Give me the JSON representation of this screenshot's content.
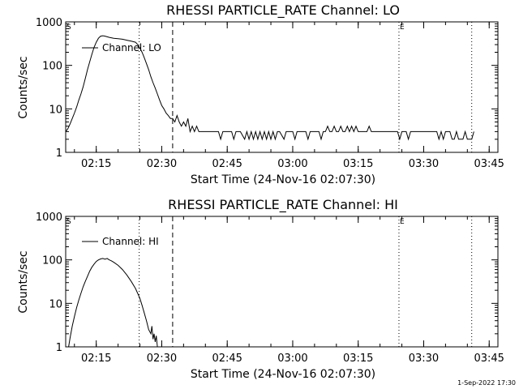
{
  "footer": {
    "timestamp": "1-Sep-2022 17:30"
  },
  "chart_data": [
    {
      "type": "line",
      "title": "RHESSI PARTICLE_RATE Channel: LO",
      "xlabel": "Start Time (24-Nov-16 02:07:30)",
      "ylabel": "Counts/sec",
      "yscale": "log",
      "ylim": [
        1,
        1000
      ],
      "xlim": [
        "02:08:00",
        "03:47:00"
      ],
      "x_ticks": [
        "02:15",
        "02:30",
        "02:45",
        "03:00",
        "03:15",
        "03:30",
        "03:45"
      ],
      "y_ticks": [
        "1",
        "10",
        "100",
        "1000"
      ],
      "grid": false,
      "legend": {
        "label": "Channel: LO",
        "position": "top-left"
      },
      "markers": [
        {
          "label": "S",
          "time": "02:08:00",
          "style": "dotted"
        },
        {
          "label": "",
          "time": "02:24:50",
          "style": "dotted"
        },
        {
          "label": "",
          "time": "02:32:30",
          "style": "dashed"
        },
        {
          "label": "E",
          "time": "03:24:20",
          "style": "dotted"
        },
        {
          "label": "",
          "time": "03:41:00",
          "style": "dotted"
        }
      ],
      "series": [
        {
          "name": "Channel: LO",
          "points": [
            [
              "02:08:00",
              3
            ],
            [
              "02:08:30",
              3.5
            ],
            [
              "02:09:00",
              4.5
            ],
            [
              "02:09:30",
              6
            ],
            [
              "02:10:00",
              8
            ],
            [
              "02:10:30",
              11
            ],
            [
              "02:11:00",
              16
            ],
            [
              "02:11:30",
              22
            ],
            [
              "02:12:00",
              32
            ],
            [
              "02:12:30",
              50
            ],
            [
              "02:13:00",
              80
            ],
            [
              "02:13:30",
              120
            ],
            [
              "02:14:00",
              180
            ],
            [
              "02:14:30",
              260
            ],
            [
              "02:15:00",
              340
            ],
            [
              "02:15:30",
              420
            ],
            [
              "02:16:00",
              470
            ],
            [
              "02:16:30",
              480
            ],
            [
              "02:17:00",
              470
            ],
            [
              "02:18:00",
              440
            ],
            [
              "02:19:00",
              420
            ],
            [
              "02:20:00",
              410
            ],
            [
              "02:21:00",
              400
            ],
            [
              "02:22:00",
              380
            ],
            [
              "02:23:00",
              360
            ],
            [
              "02:24:00",
              340
            ],
            [
              "02:24:30",
              300
            ],
            [
              "02:25:00",
              250
            ],
            [
              "02:25:30",
              200
            ],
            [
              "02:26:00",
              150
            ],
            [
              "02:26:30",
              110
            ],
            [
              "02:27:00",
              80
            ],
            [
              "02:27:30",
              55
            ],
            [
              "02:28:00",
              40
            ],
            [
              "02:28:30",
              30
            ],
            [
              "02:29:00",
              22
            ],
            [
              "02:29:30",
              16
            ],
            [
              "02:30:00",
              12
            ],
            [
              "02:30:30",
              10
            ],
            [
              "02:31:00",
              8
            ],
            [
              "02:31:30",
              7
            ],
            [
              "02:32:00",
              6
            ],
            [
              "02:32:30",
              6
            ],
            [
              "02:33:00",
              5
            ],
            [
              "02:33:30",
              7
            ],
            [
              "02:34:00",
              5
            ],
            [
              "02:34:30",
              4
            ],
            [
              "02:35:00",
              5
            ],
            [
              "02:35:30",
              4
            ],
            [
              "02:36:00",
              6
            ],
            [
              "02:36:30",
              3
            ],
            [
              "02:37:00",
              4
            ],
            [
              "02:37:30",
              3
            ],
            [
              "02:38:00",
              4
            ],
            [
              "02:38:30",
              3
            ],
            [
              "02:39:00",
              3
            ],
            [
              "02:40:00",
              3
            ],
            [
              "02:41:00",
              3
            ],
            [
              "02:42:00",
              3
            ],
            [
              "02:43:00",
              3
            ],
            [
              "02:43:30",
              2
            ],
            [
              "02:44:00",
              3
            ],
            [
              "02:45:00",
              3
            ],
            [
              "02:46:00",
              3
            ],
            [
              "02:46:30",
              2
            ],
            [
              "02:47:00",
              3
            ],
            [
              "02:48:00",
              3
            ],
            [
              "02:49:00",
              2
            ],
            [
              "02:49:30",
              3
            ],
            [
              "02:50:00",
              2
            ],
            [
              "02:50:30",
              3
            ],
            [
              "02:51:00",
              2
            ],
            [
              "02:51:30",
              3
            ],
            [
              "02:52:00",
              2
            ],
            [
              "02:52:30",
              3
            ],
            [
              "02:53:00",
              2
            ],
            [
              "02:53:30",
              3
            ],
            [
              "02:54:00",
              2
            ],
            [
              "02:54:30",
              3
            ],
            [
              "02:55:00",
              2
            ],
            [
              "02:55:30",
              3
            ],
            [
              "02:56:00",
              2
            ],
            [
              "02:56:30",
              3
            ],
            [
              "02:57:00",
              3
            ],
            [
              "02:58:00",
              2
            ],
            [
              "02:58:30",
              3
            ],
            [
              "02:59:00",
              3
            ],
            [
              "03:00:00",
              3
            ],
            [
              "03:00:30",
              2
            ],
            [
              "03:01:00",
              3
            ],
            [
              "03:02:00",
              3
            ],
            [
              "03:03:00",
              3
            ],
            [
              "03:03:30",
              2
            ],
            [
              "03:04:00",
              3
            ],
            [
              "03:05:00",
              3
            ],
            [
              "03:06:00",
              3
            ],
            [
              "03:06:30",
              2
            ],
            [
              "03:07:00",
              3
            ],
            [
              "03:07:30",
              3
            ],
            [
              "03:08:00",
              4
            ],
            [
              "03:08:30",
              3
            ],
            [
              "03:09:00",
              3
            ],
            [
              "03:09:30",
              4
            ],
            [
              "03:10:00",
              3
            ],
            [
              "03:10:30",
              3
            ],
            [
              "03:11:00",
              4
            ],
            [
              "03:11:30",
              3
            ],
            [
              "03:12:00",
              3
            ],
            [
              "03:12:30",
              4
            ],
            [
              "03:13:00",
              3
            ],
            [
              "03:13:30",
              4
            ],
            [
              "03:14:00",
              3
            ],
            [
              "03:14:30",
              4
            ],
            [
              "03:15:00",
              3
            ],
            [
              "03:16:00",
              3
            ],
            [
              "03:17:00",
              3
            ],
            [
              "03:17:30",
              4
            ],
            [
              "03:18:00",
              3
            ],
            [
              "03:19:00",
              3
            ],
            [
              "03:20:00",
              3
            ],
            [
              "03:21:00",
              3
            ],
            [
              "03:22:00",
              3
            ],
            [
              "03:23:00",
              3
            ],
            [
              "03:24:00",
              3
            ],
            [
              "03:24:30",
              2
            ],
            [
              "03:25:00",
              3
            ],
            [
              "03:26:00",
              3
            ],
            [
              "03:26:30",
              2
            ],
            [
              "03:27:00",
              3
            ],
            [
              "03:28:00",
              3
            ],
            [
              "03:29:00",
              3
            ],
            [
              "03:30:00",
              3
            ],
            [
              "03:31:00",
              3
            ],
            [
              "03:32:00",
              3
            ],
            [
              "03:33:00",
              3
            ],
            [
              "03:33:30",
              2
            ],
            [
              "03:34:00",
              3
            ],
            [
              "03:34:30",
              2
            ],
            [
              "03:35:00",
              3
            ],
            [
              "03:36:00",
              3
            ],
            [
              "03:36:30",
              2
            ],
            [
              "03:37:00",
              2
            ],
            [
              "03:37:30",
              3
            ],
            [
              "03:38:00",
              2
            ],
            [
              "03:39:00",
              2
            ],
            [
              "03:39:30",
              3
            ],
            [
              "03:40:00",
              2
            ],
            [
              "03:40:30",
              2
            ],
            [
              "03:41:00",
              2
            ],
            [
              "03:41:30",
              3
            ]
          ]
        }
      ]
    },
    {
      "type": "line",
      "title": "RHESSI PARTICLE_RATE Channel: HI",
      "xlabel": "Start Time (24-Nov-16 02:07:30)",
      "ylabel": "Counts/sec",
      "yscale": "log",
      "ylim": [
        1,
        1000
      ],
      "xlim": [
        "02:08:00",
        "03:47:00"
      ],
      "x_ticks": [
        "02:15",
        "02:30",
        "02:45",
        "03:00",
        "03:15",
        "03:30",
        "03:45"
      ],
      "y_ticks": [
        "1",
        "10",
        "100",
        "1000"
      ],
      "grid": false,
      "legend": {
        "label": "Channel: HI",
        "position": "top-left"
      },
      "markers": [
        {
          "label": "S",
          "time": "02:08:00",
          "style": "dotted"
        },
        {
          "label": "",
          "time": "02:24:50",
          "style": "dotted"
        },
        {
          "label": "",
          "time": "02:32:30",
          "style": "dashed"
        },
        {
          "label": "E",
          "time": "03:24:20",
          "style": "dotted"
        },
        {
          "label": "",
          "time": "03:41:00",
          "style": "dotted"
        }
      ],
      "series": [
        {
          "name": "Channel: HI",
          "points": [
            [
              "02:08:40",
              1
            ],
            [
              "02:09:00",
              1.6
            ],
            [
              "02:09:30",
              3
            ],
            [
              "02:10:00",
              5
            ],
            [
              "02:10:30",
              8
            ],
            [
              "02:11:00",
              12
            ],
            [
              "02:11:30",
              17
            ],
            [
              "02:12:00",
              24
            ],
            [
              "02:12:30",
              32
            ],
            [
              "02:13:00",
              42
            ],
            [
              "02:13:30",
              55
            ],
            [
              "02:14:00",
              68
            ],
            [
              "02:14:30",
              80
            ],
            [
              "02:15:00",
              92
            ],
            [
              "02:15:30",
              100
            ],
            [
              "02:16:00",
              105
            ],
            [
              "02:16:30",
              108
            ],
            [
              "02:17:00",
              104
            ],
            [
              "02:17:30",
              108
            ],
            [
              "02:18:00",
              100
            ],
            [
              "02:18:30",
              95
            ],
            [
              "02:19:00",
              88
            ],
            [
              "02:20:00",
              75
            ],
            [
              "02:21:00",
              60
            ],
            [
              "02:22:00",
              45
            ],
            [
              "02:23:00",
              32
            ],
            [
              "02:24:00",
              22
            ],
            [
              "02:24:30",
              17
            ],
            [
              "02:25:00",
              13
            ],
            [
              "02:25:30",
              9
            ],
            [
              "02:26:00",
              6
            ],
            [
              "02:26:30",
              4
            ],
            [
              "02:27:00",
              2.5
            ],
            [
              "02:27:30",
              2
            ],
            [
              "02:27:45",
              3
            ],
            [
              "02:28:00",
              1.5
            ],
            [
              "02:28:15",
              2
            ],
            [
              "02:28:30",
              1.3
            ],
            [
              "02:28:45",
              1.8
            ],
            [
              "02:29:00",
              1
            ]
          ]
        }
      ]
    }
  ]
}
